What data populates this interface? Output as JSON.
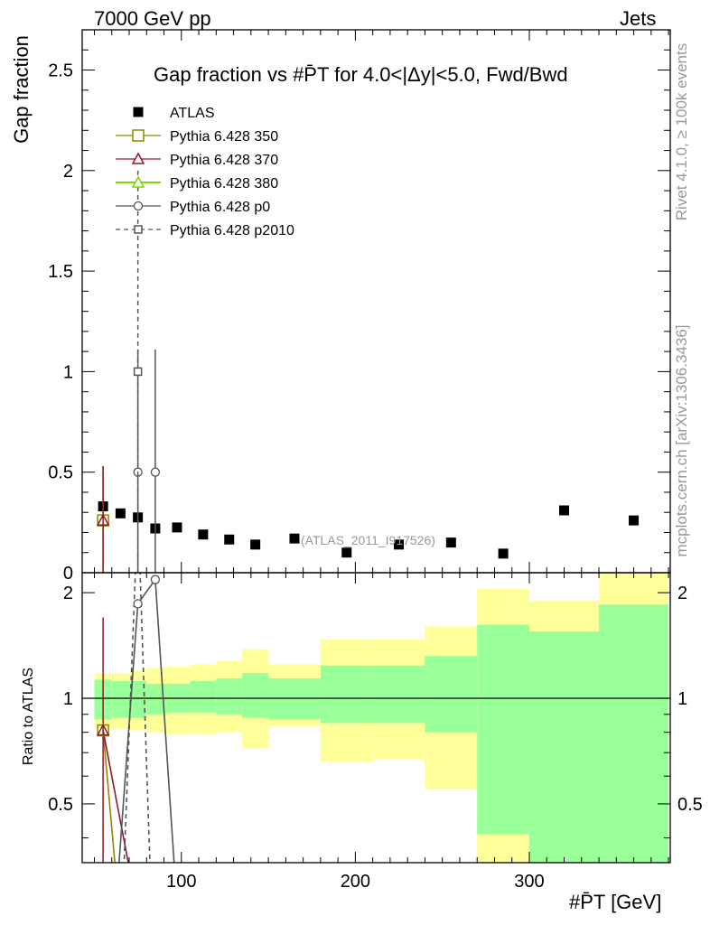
{
  "header": {
    "energy": "7000 GeV pp",
    "category": "Jets",
    "rivet": "Rivet 4.1.0, ≥ 100k events",
    "site": "mcplots.cern.ch [arXiv:1306.3436]",
    "ref": "(ATLAS_2011_I917526)"
  },
  "chart_data": [
    {
      "type": "scatter",
      "panel": "main",
      "title": "Gap fraction vs #P̄T for 4.0<|Δy|<5.0, Fwd/Bwd",
      "ylabel": "Gap fraction",
      "xlabel": "#P̄T [GeV]",
      "xlim": [
        43,
        381
      ],
      "ylim": [
        0,
        2.7
      ],
      "xticks": [
        100,
        200,
        300
      ],
      "yticks": [
        0,
        0.5,
        1,
        1.5,
        2,
        2.5
      ],
      "ytick_labels": [
        "0",
        "0.5",
        "1",
        "1.5",
        "2",
        "2.5"
      ],
      "series": [
        {
          "name": "ATLAS",
          "color": "#000000",
          "marker": "filled-square",
          "x": [
            55,
            65,
            75,
            85,
            97.5,
            112.5,
            127.5,
            142.5,
            165,
            195,
            225,
            255,
            285,
            320,
            360
          ],
          "y": [
            0.33,
            0.295,
            0.275,
            0.22,
            0.225,
            0.19,
            0.165,
            0.14,
            0.17,
            0.1,
            0.14,
            0.15,
            0.095,
            0.31,
            0.26
          ]
        },
        {
          "name": "Pythia 6.428 350",
          "color": "#8B8B00",
          "marker": "open-square",
          "x": [
            55
          ],
          "y": [
            0.26
          ],
          "yerr": [
            0.27
          ]
        },
        {
          "name": "Pythia 6.428 370",
          "color": "#8B1A2A",
          "marker": "open-triangle",
          "x": [
            55
          ],
          "y": [
            0.26
          ],
          "yerr": [
            0.27
          ]
        },
        {
          "name": "Pythia 6.428 380",
          "color": "#7FD400",
          "marker": "open-triangle",
          "x": [],
          "y": []
        },
        {
          "name": "Pythia 6.428 p0",
          "color": "#555555",
          "marker": "open-circle",
          "x": [
            75,
            85
          ],
          "y": [
            0.5,
            0.5
          ],
          "yerr": [
            0.61,
            0.61
          ]
        },
        {
          "name": "Pythia 6.428 p2010",
          "color": "#555555",
          "marker": "open-square",
          "dashed": true,
          "x": [
            75
          ],
          "y": [
            1.0
          ],
          "yerr": [
            1.0
          ]
        }
      ]
    },
    {
      "type": "line",
      "panel": "ratio",
      "ylabel": "Ratio to ATLAS",
      "ylim": [
        0.34,
        2.28
      ],
      "xlim": [
        43,
        381
      ],
      "yticks": [
        0.5,
        1,
        2
      ],
      "ytick_labels": [
        "0.5",
        "1",
        "2"
      ],
      "bins": [
        {
          "lo": 50,
          "hi": 60,
          "y1": [
            0.87,
            1.13
          ],
          "y2": [
            0.82,
            1.18
          ]
        },
        {
          "lo": 60,
          "hi": 70,
          "y1": [
            0.88,
            1.12
          ],
          "y2": [
            0.82,
            1.18
          ]
        },
        {
          "lo": 70,
          "hi": 80,
          "y1": [
            0.88,
            1.12
          ],
          "y2": [
            0.81,
            1.2
          ]
        },
        {
          "lo": 80,
          "hi": 90,
          "y1": [
            0.9,
            1.1
          ],
          "y2": [
            0.8,
            1.22
          ]
        },
        {
          "lo": 90,
          "hi": 105,
          "y1": [
            0.91,
            1.1
          ],
          "y2": [
            0.79,
            1.23
          ]
        },
        {
          "lo": 105,
          "hi": 120,
          "y1": [
            0.91,
            1.12
          ],
          "y2": [
            0.79,
            1.25
          ]
        },
        {
          "lo": 120,
          "hi": 135,
          "y1": [
            0.9,
            1.14
          ],
          "y2": [
            0.8,
            1.28
          ]
        },
        {
          "lo": 135,
          "hi": 150,
          "y1": [
            0.88,
            1.18
          ],
          "y2": [
            0.72,
            1.38
          ]
        },
        {
          "lo": 150,
          "hi": 180,
          "y1": [
            0.87,
            1.14
          ],
          "y2": [
            0.83,
            1.25
          ]
        },
        {
          "lo": 180,
          "hi": 210,
          "y1": [
            0.85,
            1.24
          ],
          "y2": [
            0.66,
            1.47
          ]
        },
        {
          "lo": 210,
          "hi": 240,
          "y1": [
            0.85,
            1.24
          ],
          "y2": [
            0.67,
            1.47
          ]
        },
        {
          "lo": 240,
          "hi": 270,
          "y1": [
            0.8,
            1.32
          ],
          "y2": [
            0.55,
            1.6
          ]
        },
        {
          "lo": 270,
          "hi": 300,
          "y1": [
            0.41,
            1.62
          ],
          "y2": [
            0.32,
            2.05
          ]
        },
        {
          "lo": 300,
          "hi": 340,
          "y1": [
            0.32,
            1.55
          ],
          "y2": [
            0.59,
            1.9
          ]
        },
        {
          "lo": 340,
          "hi": 380,
          "y1": [
            0.32,
            1.85
          ],
          "y2": [
            0.32,
            2.4
          ]
        }
      ],
      "series": [
        {
          "name": "Pythia 6.428 350",
          "color": "#8B8B00",
          "x": [
            55,
            62
          ],
          "y": [
            0.81,
            0.33
          ],
          "marker_x": 55,
          "marker_y": 0.81
        },
        {
          "name": "Pythia 6.428 370",
          "color": "#8B1A2A",
          "x": [
            55,
            70
          ],
          "y": [
            0.81,
            0.33
          ],
          "marker_x": 55,
          "marker_y": 0.81,
          "err": [
            0.34,
            1.7
          ]
        },
        {
          "name": "Pythia 6.428 p0",
          "color": "#555555",
          "x": [
            64,
            75,
            85,
            96
          ],
          "y": [
            0.33,
            1.86,
            2.18,
            0.33
          ]
        },
        {
          "name": "Pythia 6.428 p2010",
          "color": "#555555",
          "dashed": true,
          "x": [
            67,
            75,
            82
          ],
          "y": [
            0.33,
            3.5,
            0.33
          ]
        }
      ]
    }
  ]
}
